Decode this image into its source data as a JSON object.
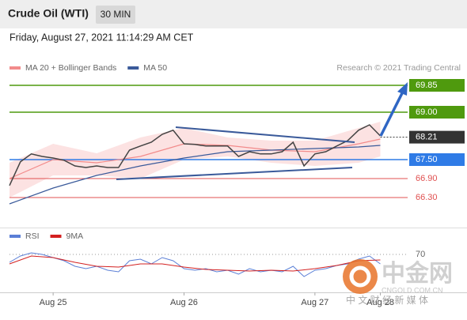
{
  "header": {
    "title": "Crude Oil (WTI)",
    "timeframe": "30 MIN",
    "timestamp": "Friday, August 27, 2021 11:14:29 AM CET"
  },
  "watermark": {
    "brand": "中金网",
    "site": "CNGOLD.COM.CN",
    "slogan": "中 文 财 经 新 媒 体"
  },
  "chart_data": [
    {
      "type": "line",
      "source": "Research © 2021 Trading Central",
      "color": "#444444",
      "x": [
        -8,
        -6,
        -4,
        -2,
        0,
        2,
        4,
        6,
        8,
        10,
        12,
        14,
        16,
        18,
        20,
        22,
        24,
        26,
        28,
        30,
        32,
        34,
        36,
        38,
        40,
        42,
        44,
        46,
        48,
        50,
        52,
        54,
        56,
        58,
        60
      ],
      "values": [
        66.68,
        67.43,
        67.68,
        67.6,
        67.55,
        67.48,
        67.3,
        67.25,
        67.3,
        67.25,
        67.25,
        67.8,
        67.93,
        68.05,
        68.3,
        68.43,
        68.0,
        67.98,
        67.93,
        67.93,
        67.93,
        67.6,
        67.75,
        67.68,
        67.68,
        67.75,
        68.05,
        67.3,
        67.68,
        67.75,
        67.93,
        68.1,
        68.43,
        68.6,
        68.25
      ],
      "series": [
        {
          "name": "MA 20 + Bollinger Bands",
          "color": "#f28b8b",
          "x": [
            -8,
            0,
            8,
            16,
            24,
            32,
            40,
            48,
            56,
            60
          ],
          "values": [
            66.9,
            67.5,
            67.4,
            67.6,
            68.0,
            67.95,
            67.8,
            67.75,
            68.0,
            68.15
          ],
          "upper": [
            67.4,
            68.0,
            67.7,
            68.2,
            68.5,
            68.2,
            68.1,
            68.1,
            68.5,
            68.7
          ],
          "lower": [
            66.3,
            67.0,
            67.0,
            66.9,
            67.5,
            67.6,
            67.4,
            67.3,
            67.4,
            67.6
          ]
        },
        {
          "name": "MA 50",
          "color": "#3a5a9a",
          "x": [
            -8,
            0,
            8,
            16,
            24,
            32,
            40,
            48,
            56,
            60
          ],
          "values": [
            66.1,
            66.6,
            67.0,
            67.3,
            67.55,
            67.75,
            67.8,
            67.85,
            67.9,
            67.95
          ]
        }
      ],
      "levels": [
        {
          "value": 69.85,
          "label": "69.85",
          "color": "#4f9a0e",
          "boxed": true,
          "dash": false
        },
        {
          "value": 69.0,
          "label": "69.00",
          "color": "#4f9a0e",
          "boxed": true,
          "dash": false
        },
        {
          "value": 68.21,
          "label": "68.21",
          "color": "#333333",
          "boxed": true,
          "dash": true
        },
        {
          "value": 67.5,
          "label": "67.50",
          "color": "#2f7be6",
          "boxed": true,
          "dash": false
        },
        {
          "value": 66.9,
          "label": "66.90",
          "color": "#e05050",
          "boxed": false,
          "dash": false
        },
        {
          "value": 66.3,
          "label": "66.30",
          "color": "#e05050",
          "boxed": false,
          "dash": false
        }
      ],
      "xlim": [
        -8,
        65
      ],
      "ylim": [
        65.4,
        70.7
      ]
    },
    {
      "type": "line",
      "series": [
        {
          "name": "RSI",
          "color": "#5b7fd6",
          "x": [
            -8,
            -6,
            -4,
            -2,
            0,
            2,
            4,
            6,
            8,
            10,
            12,
            14,
            16,
            18,
            20,
            22,
            24,
            26,
            28,
            30,
            32,
            34,
            36,
            38,
            40,
            42,
            44,
            46,
            48,
            50,
            52,
            54,
            56,
            58,
            60
          ],
          "values": [
            60,
            68,
            72,
            70,
            66,
            62,
            55,
            52,
            55,
            50,
            48,
            62,
            64,
            58,
            66,
            62,
            52,
            50,
            52,
            48,
            50,
            45,
            52,
            48,
            50,
            48,
            55,
            42,
            50,
            52,
            56,
            58,
            64,
            68,
            58
          ]
        },
        {
          "name": "9MA",
          "color": "#d32020",
          "x": [
            -8,
            -4,
            0,
            4,
            8,
            12,
            16,
            20,
            24,
            28,
            32,
            36,
            40,
            44,
            48,
            52,
            56,
            60
          ],
          "values": [
            58,
            68,
            66,
            60,
            55,
            54,
            58,
            58,
            54,
            51,
            50,
            49,
            50,
            49,
            52,
            56,
            62,
            63
          ]
        }
      ],
      "xlim": [
        -8,
        65
      ],
      "ylim": [
        20,
        85
      ],
      "yticks": [
        70
      ],
      "xticks": [
        {
          "value": 0,
          "label": "Aug 25"
        },
        {
          "value": 24,
          "label": "Aug 26"
        },
        {
          "value": 48,
          "label": "Aug 27"
        },
        {
          "value": 60,
          "label": "Aug 28"
        }
      ]
    }
  ]
}
